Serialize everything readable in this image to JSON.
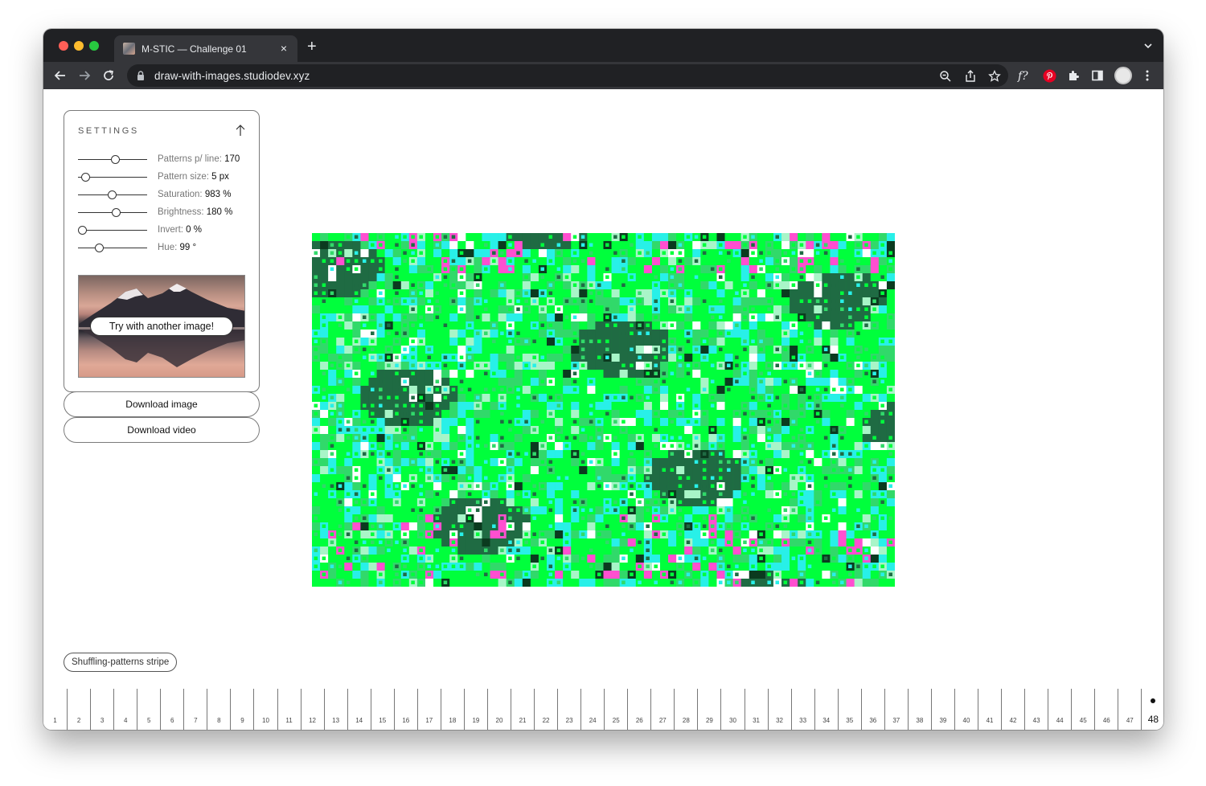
{
  "browser": {
    "tab_title": "M-STIC — Challenge 01",
    "tab_close": "×",
    "new_tab": "+",
    "url": "draw-with-images.studiodev.xyz"
  },
  "colors": {
    "chrome_dark": "#202124",
    "chrome_mid": "#35363a",
    "pattern_green": "#00ff3c",
    "pattern_cyan": "#28f0e8",
    "pattern_magenta": "#ff4fd0",
    "pattern_dark_green": "#1f6b43"
  },
  "settings": {
    "title": "SETTINGS",
    "sliders": [
      {
        "label": "Patterns p/ line:",
        "value": "170",
        "level": 0.55
      },
      {
        "label": "Pattern size:",
        "value": "5 px",
        "level": 0.05
      },
      {
        "label": "Saturation:",
        "value": "983 %",
        "level": 0.49
      },
      {
        "label": "Brightness:",
        "value": "180 %",
        "level": 0.56
      },
      {
        "label": "Invert:",
        "value": "0 %",
        "level": 0.0
      },
      {
        "label": "Hue:",
        "value": "99 °",
        "level": 0.28
      }
    ],
    "try_another": "Try with another image!"
  },
  "actions": {
    "download_image": "Download image",
    "download_video": "Download video"
  },
  "stripe": {
    "label": "Shuffling-patterns stripe",
    "frames": [
      "1",
      "2",
      "3",
      "4",
      "5",
      "6",
      "7",
      "8",
      "9",
      "10",
      "11",
      "12",
      "13",
      "14",
      "15",
      "16",
      "17",
      "18",
      "19",
      "20",
      "21",
      "22",
      "23",
      "24",
      "25",
      "26",
      "27",
      "28",
      "29",
      "30",
      "31",
      "32",
      "33",
      "34",
      "35",
      "36",
      "37",
      "38",
      "39",
      "40",
      "41",
      "42",
      "43",
      "44",
      "45",
      "46",
      "47",
      "48"
    ],
    "active_frame": "48"
  }
}
